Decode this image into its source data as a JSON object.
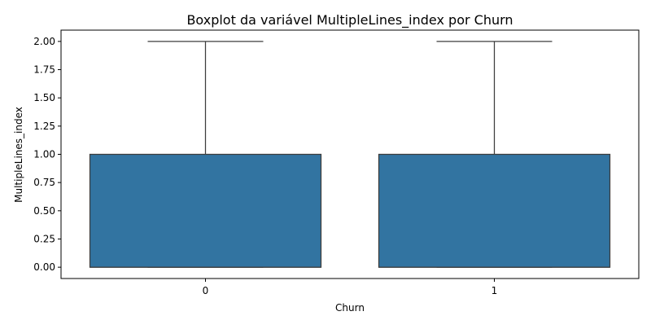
{
  "chart_data": {
    "type": "boxplot",
    "title": "Boxplot da variável MultipleLines_index por Churn",
    "xlabel": "Churn",
    "ylabel": "MultipleLines_index",
    "categories": [
      "0",
      "1"
    ],
    "ylim": [
      -0.1,
      2.1
    ],
    "yticks": [
      0.0,
      0.25,
      0.5,
      0.75,
      1.0,
      1.25,
      1.5,
      1.75,
      2.0
    ],
    "ytick_labels": [
      "0.00",
      "0.25",
      "0.50",
      "0.75",
      "1.00",
      "1.25",
      "1.50",
      "1.75",
      "2.00"
    ],
    "boxes": [
      {
        "category": "0",
        "whisker_low": 0,
        "q1": 0,
        "median": 0,
        "q3": 1,
        "whisker_high": 2
      },
      {
        "category": "1",
        "whisker_low": 0,
        "q1": 0,
        "median": 0,
        "q3": 1,
        "whisker_high": 2
      }
    ],
    "box_color": "#3274a1",
    "line_color": "#3d3d3d",
    "grid": false
  }
}
